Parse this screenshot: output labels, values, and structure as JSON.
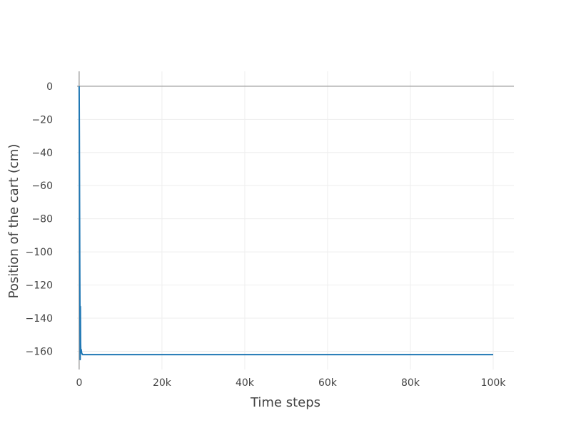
{
  "chart_data": {
    "type": "line",
    "xlabel": "Time steps",
    "ylabel": "Position of the cart (cm)",
    "xlim": [
      -500,
      105000
    ],
    "ylim": [
      -171,
      9
    ],
    "x_ticks": [
      0,
      20000,
      40000,
      60000,
      80000,
      100000
    ],
    "x_tick_labels": [
      "0",
      "20k",
      "40k",
      "60k",
      "80k",
      "100k"
    ],
    "y_ticks": [
      0,
      -20,
      -40,
      -60,
      -80,
      -100,
      -120,
      -140,
      -160
    ],
    "y_tick_labels": [
      "0",
      "−20",
      "−40",
      "−60",
      "−80",
      "−100",
      "−120",
      "−140",
      "−160"
    ],
    "grid": true,
    "zero_line": true,
    "series": [
      {
        "color": "#1f77b4",
        "x": [
          0,
          50,
          100,
          150,
          200,
          250,
          300,
          350,
          400,
          500,
          600,
          700,
          800,
          1000,
          1200,
          1500,
          2000,
          3000,
          5000,
          10000,
          20000,
          30000,
          40000,
          50000,
          60000,
          70000,
          80000,
          90000,
          100000
        ],
        "y": [
          0,
          -30,
          -70,
          -110,
          -140,
          -165,
          -133,
          -155,
          -160,
          -159,
          -161,
          -161.5,
          -162,
          -162,
          -162,
          -162,
          -162,
          -162,
          -162,
          -162,
          -162,
          -162,
          -162,
          -162,
          -162,
          -162,
          -162,
          -162,
          -162
        ]
      }
    ]
  }
}
